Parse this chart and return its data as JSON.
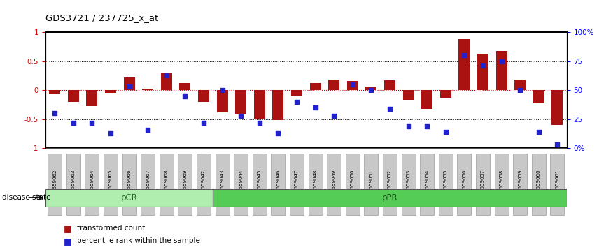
{
  "title": "GDS3721 / 237725_x_at",
  "samples": [
    "GSM559062",
    "GSM559063",
    "GSM559064",
    "GSM559065",
    "GSM559066",
    "GSM559067",
    "GSM559068",
    "GSM559069",
    "GSM559042",
    "GSM559043",
    "GSM559044",
    "GSM559045",
    "GSM559046",
    "GSM559047",
    "GSM559048",
    "GSM559049",
    "GSM559050",
    "GSM559051",
    "GSM559052",
    "GSM559053",
    "GSM559054",
    "GSM559055",
    "GSM559056",
    "GSM559057",
    "GSM559058",
    "GSM559059",
    "GSM559060",
    "GSM559061"
  ],
  "bar_values": [
    -0.07,
    -0.2,
    -0.27,
    -0.06,
    0.22,
    0.03,
    0.3,
    0.12,
    -0.2,
    -0.38,
    -0.42,
    -0.5,
    -0.52,
    -0.09,
    0.12,
    0.18,
    0.16,
    0.06,
    0.17,
    -0.17,
    -0.32,
    -0.13,
    0.88,
    0.63,
    0.68,
    0.18,
    -0.23,
    -0.6
  ],
  "percentile_values": [
    0.3,
    0.22,
    0.22,
    0.13,
    0.53,
    0.16,
    0.63,
    0.45,
    0.22,
    0.5,
    0.28,
    0.22,
    0.13,
    0.4,
    0.35,
    0.28,
    0.55,
    0.5,
    0.34,
    0.19,
    0.19,
    0.14,
    0.8,
    0.71,
    0.75,
    0.5,
    0.14,
    0.03
  ],
  "pCR_count": 9,
  "pPR_count": 19,
  "bar_color": "#AA1111",
  "percentile_color": "#2222CC",
  "pCR_color": "#B0EEB0",
  "pPR_color": "#55CC55",
  "pCR_label": "pCR",
  "pPR_label": "pPR",
  "ylim": [
    -1.0,
    1.0
  ],
  "yticks": [
    -1.0,
    -0.5,
    0.0,
    0.5,
    1.0
  ],
  "ytick_labels": [
    "-1",
    "-0.5",
    "0",
    "0.5",
    "1"
  ],
  "right_ytick_labels": [
    "0%",
    "25",
    "50",
    "75",
    "100%"
  ],
  "disease_state_label": "disease state",
  "legend_bar_label": "transformed count",
  "legend_pct_label": "percentile rank within the sample",
  "tick_box_color": "#C8C8C8"
}
